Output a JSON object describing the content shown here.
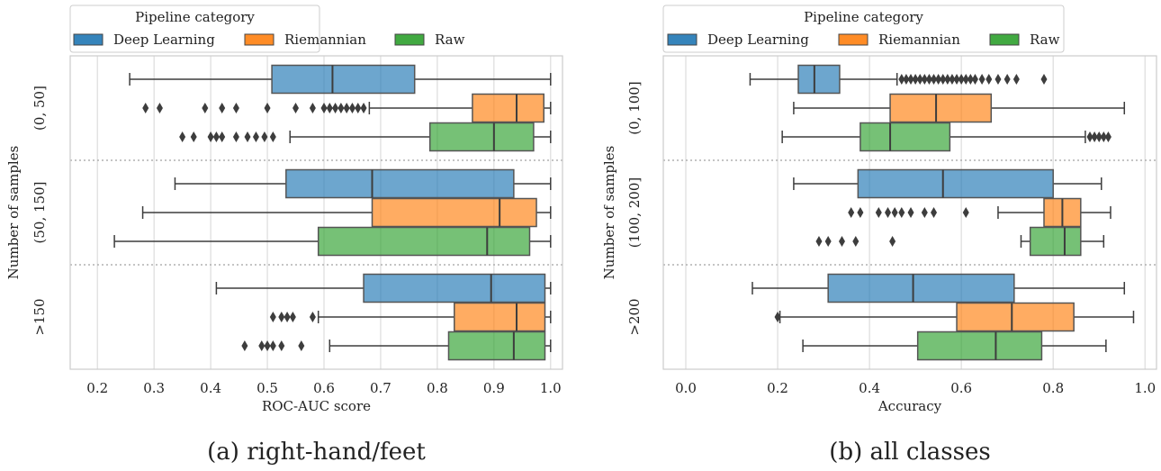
{
  "chart_data": [
    {
      "type": "boxplot",
      "caption": "(a) right-hand/feet",
      "xlabel": "ROC-AUC score",
      "ylabel": "Number of samples",
      "legend_title": "Pipeline category",
      "grid": true,
      "categories": [
        "(0, 50]",
        "(50, 150]",
        ">150"
      ],
      "xlim": [
        0.152,
        1.021
      ],
      "xticks": [
        0.2,
        0.3,
        0.4,
        0.5,
        0.6,
        0.7,
        0.8,
        0.9,
        {
          "value": 1,
          "label": "1.0"
        }
      ],
      "series": [
        {
          "name": "Deep Learning",
          "color": "#1f77b4",
          "boxes": [
            {
              "whislo": 0.257,
              "q1": 0.508,
              "med": 0.615,
              "q3": 0.76,
              "whishi": 1,
              "fliers": []
            },
            {
              "whislo": 0.337,
              "q1": 0.533,
              "med": 0.685,
              "q3": 0.935,
              "whishi": 1,
              "fliers": []
            },
            {
              "whislo": 0.41,
              "q1": 0.67,
              "med": 0.895,
              "q3": 0.99,
              "whishi": 1,
              "fliers": []
            }
          ]
        },
        {
          "name": "Riemannian",
          "color": "#ff7f0e",
          "boxes": [
            {
              "whislo": 0.68,
              "q1": 0.862,
              "med": 0.94,
              "q3": 0.988,
              "whishi": 1,
              "fliers": [
                0.285,
                0.31,
                0.39,
                0.42,
                0.445,
                0.5,
                0.55,
                0.58,
                0.6,
                0.61,
                0.62,
                0.63,
                0.64,
                0.65,
                0.66,
                0.67
              ]
            },
            {
              "whislo": 0.28,
              "q1": 0.685,
              "med": 0.91,
              "q3": 0.975,
              "whishi": 1,
              "fliers": []
            },
            {
              "whislo": 0.59,
              "q1": 0.83,
              "med": 0.94,
              "q3": 0.99,
              "whishi": 1,
              "fliers": [
                0.51,
                0.525,
                0.535,
                0.545,
                0.58
              ]
            }
          ]
        },
        {
          "name": "Raw",
          "color": "#2ca02c",
          "boxes": [
            {
              "whislo": 0.54,
              "q1": 0.787,
              "med": 0.9,
              "q3": 0.97,
              "whishi": 1,
              "fliers": [
                0.35,
                0.37,
                0.4,
                0.41,
                0.42,
                0.445,
                0.465,
                0.48,
                0.495,
                0.51
              ]
            },
            {
              "whislo": 0.23,
              "q1": 0.59,
              "med": 0.888,
              "q3": 0.963,
              "whishi": 1,
              "fliers": []
            },
            {
              "whislo": 0.61,
              "q1": 0.82,
              "med": 0.935,
              "q3": 0.99,
              "whishi": 1,
              "fliers": [
                0.46,
                0.49,
                0.5,
                0.51,
                0.525,
                0.56
              ]
            }
          ]
        }
      ]
    },
    {
      "type": "boxplot",
      "caption": "(b) all classes",
      "xlabel": "Accuracy",
      "ylabel": "Number of samples",
      "legend_title": "Pipeline category",
      "grid": true,
      "categories": [
        "(0, 100]",
        "(100, 200]",
        ">200"
      ],
      "xlim": [
        -0.049,
        1.025
      ],
      "xticks": [
        {
          "value": 0,
          "label": "0.0"
        },
        0.2,
        0.4,
        0.6,
        0.8,
        {
          "value": 1,
          "label": "1.0"
        }
      ],
      "series": [
        {
          "name": "Deep Learning",
          "color": "#1f77b4",
          "boxes": [
            {
              "whislo": 0.14,
              "q1": 0.245,
              "med": 0.28,
              "q3": 0.335,
              "whishi": 0.46,
              "fliers": [
                0.47,
                0.48,
                0.49,
                0.5,
                0.51,
                0.52,
                0.53,
                0.54,
                0.55,
                0.56,
                0.57,
                0.58,
                0.59,
                0.6,
                0.61,
                0.62,
                0.63,
                0.645,
                0.66,
                0.68,
                0.7,
                0.72,
                0.78
              ]
            },
            {
              "whislo": 0.235,
              "q1": 0.375,
              "med": 0.56,
              "q3": 0.8,
              "whishi": 0.905,
              "fliers": []
            },
            {
              "whislo": 0.145,
              "q1": 0.31,
              "med": 0.495,
              "q3": 0.715,
              "whishi": 0.955,
              "fliers": []
            }
          ]
        },
        {
          "name": "Riemannian",
          "color": "#ff7f0e",
          "boxes": [
            {
              "whislo": 0.235,
              "q1": 0.445,
              "med": 0.545,
              "q3": 0.665,
              "whishi": 0.955,
              "fliers": []
            },
            {
              "whislo": 0.68,
              "q1": 0.78,
              "med": 0.82,
              "q3": 0.86,
              "whishi": 0.925,
              "fliers": [
                0.36,
                0.38,
                0.42,
                0.44,
                0.455,
                0.47,
                0.49,
                0.52,
                0.54,
                0.61
              ]
            },
            {
              "whislo": 0.205,
              "q1": 0.59,
              "med": 0.71,
              "q3": 0.845,
              "whishi": 0.975,
              "fliers": [
                0.2
              ]
            }
          ]
        },
        {
          "name": "Raw",
          "color": "#2ca02c",
          "boxes": [
            {
              "whislo": 0.21,
              "q1": 0.38,
              "med": 0.445,
              "q3": 0.575,
              "whishi": 0.87,
              "fliers": [
                0.88,
                0.89,
                0.9,
                0.91,
                0.92
              ]
            },
            {
              "whislo": 0.73,
              "q1": 0.75,
              "med": 0.825,
              "q3": 0.86,
              "whishi": 0.91,
              "fliers": [
                0.29,
                0.31,
                0.34,
                0.37,
                0.45
              ]
            },
            {
              "whislo": 0.255,
              "q1": 0.505,
              "med": 0.675,
              "q3": 0.775,
              "whishi": 0.915,
              "fliers": []
            }
          ]
        }
      ]
    }
  ]
}
